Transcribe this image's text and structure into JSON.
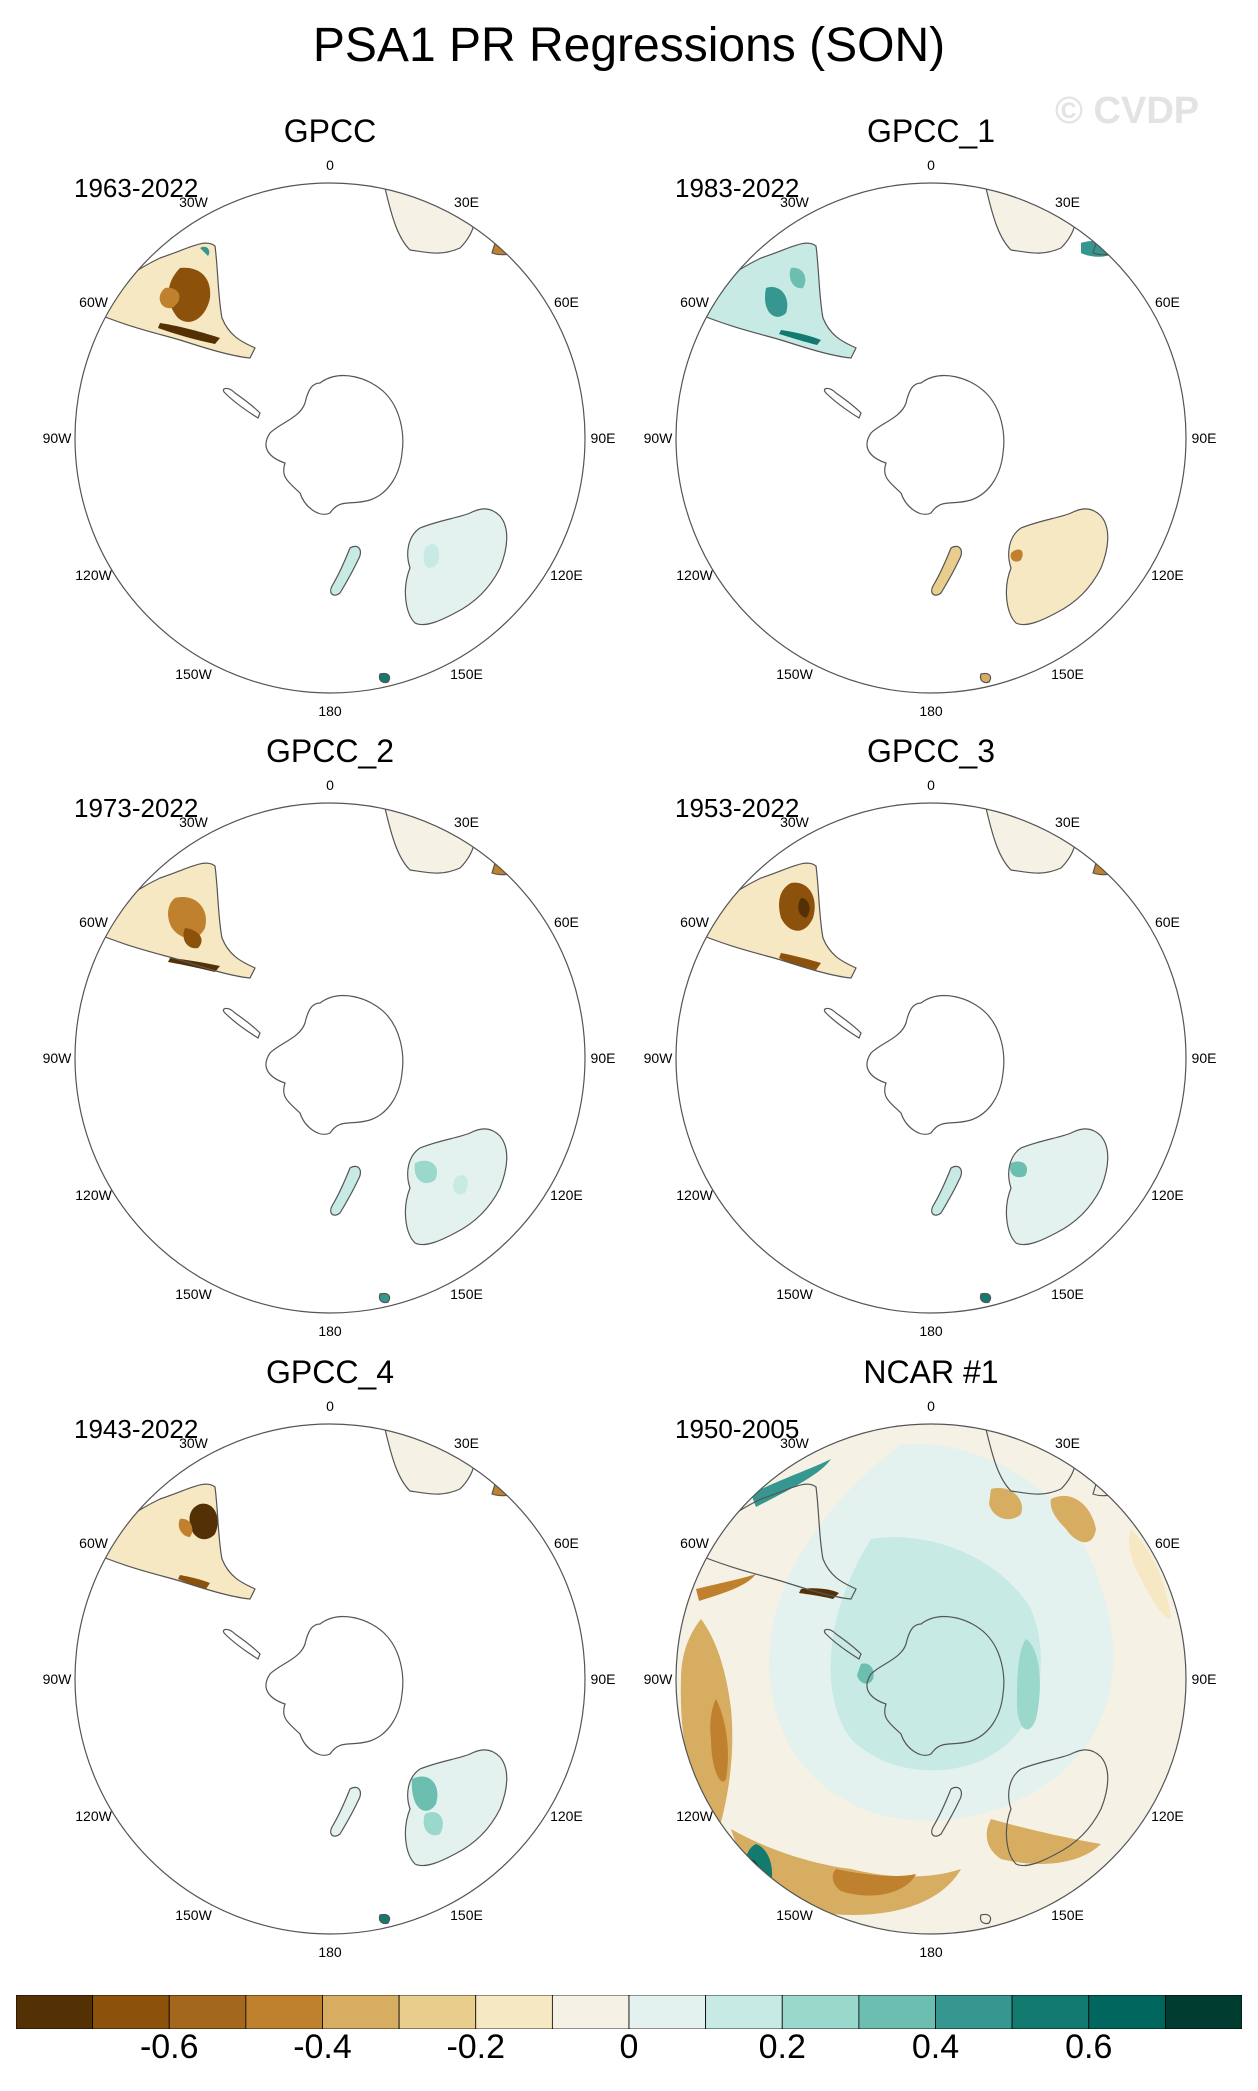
{
  "title": "PSA1 PR Regressions (SON)",
  "watermark": "© CVDP",
  "colors": {
    "palette": [
      "#543005",
      "#8c510a",
      "#a4671e",
      "#bf812d",
      "#d6ad61",
      "#e9cd8c",
      "#f6e8c3",
      "#f5f1e4",
      "#e3f2ef",
      "#c7eae5",
      "#99d8ca",
      "#6cbfb0",
      "#35978f",
      "#137a70",
      "#01665e",
      "#003c30"
    ],
    "coastline": "#555555",
    "circle": "#555555"
  },
  "colorbar": {
    "labels": [
      "-0.6",
      "-0.4",
      "-0.2",
      "0",
      "0.2",
      "0.4",
      "0.6"
    ],
    "values": [
      -0.6,
      -0.4,
      -0.2,
      0,
      0.2,
      0.4,
      0.6
    ]
  },
  "longitude_labels": [
    "0",
    "30E",
    "60E",
    "90E",
    "120E",
    "150E",
    "180",
    "150W",
    "120W",
    "90W",
    "60W",
    "30W"
  ],
  "panels": [
    {
      "name": "GPCC",
      "period": "1963-2022"
    },
    {
      "name": "GPCC_1",
      "period": "1983-2022"
    },
    {
      "name": "GPCC_2",
      "period": "1973-2022"
    },
    {
      "name": "GPCC_3",
      "period": "1953-2022"
    },
    {
      "name": "GPCC_4",
      "period": "1943-2022"
    },
    {
      "name": "NCAR #1",
      "period": "1950-2005"
    }
  ]
}
